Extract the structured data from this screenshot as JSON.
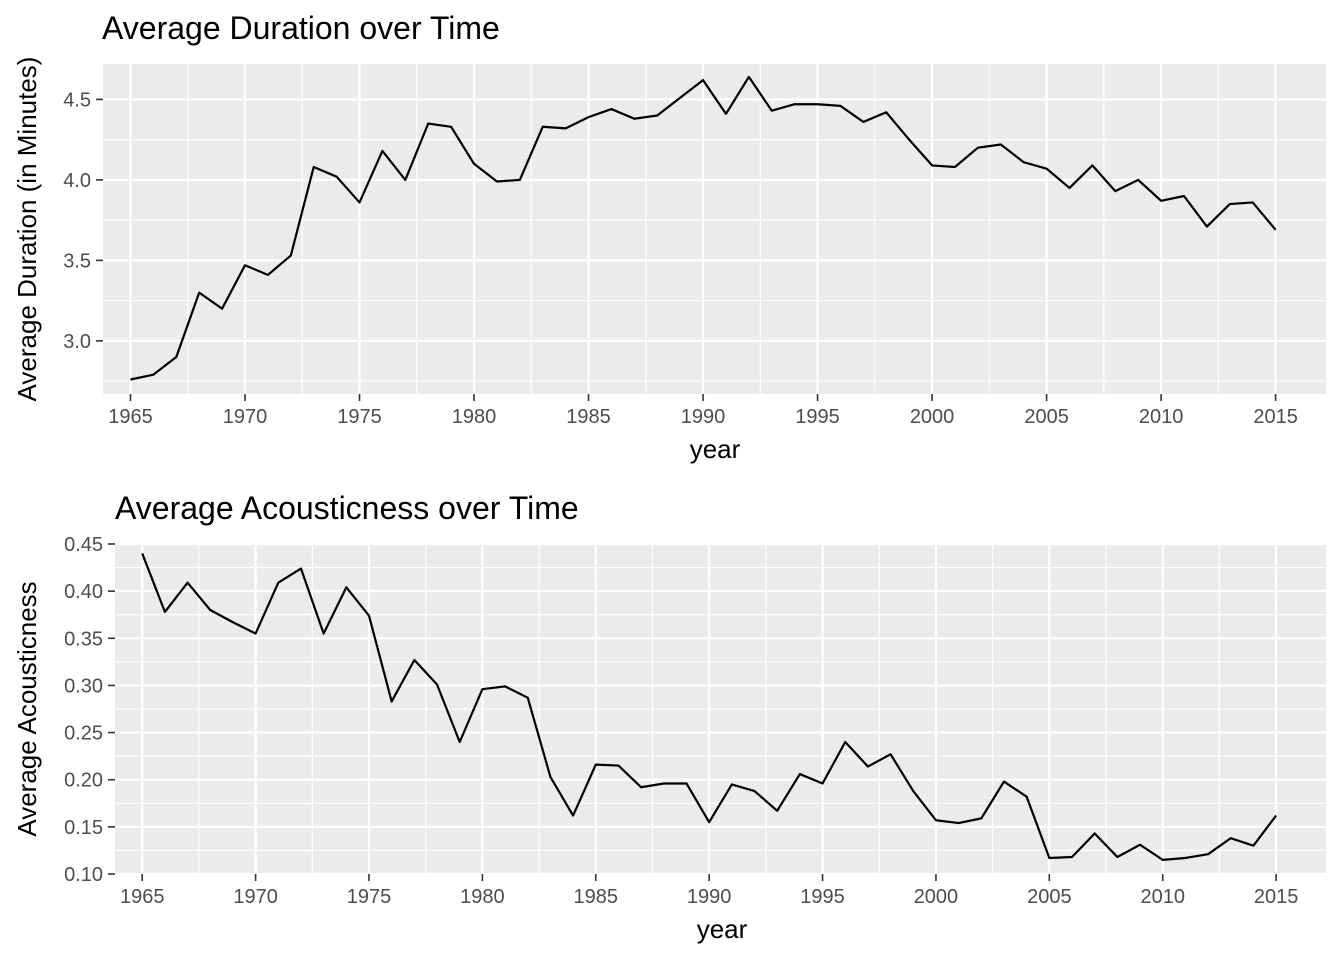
{
  "chart_data": [
    {
      "type": "line",
      "title": "Average Duration over Time",
      "xlabel": "year",
      "ylabel": "Average Duration (in Minutes)",
      "xlim": [
        1963.8,
        2017.2
      ],
      "ylim": [
        2.67,
        4.72
      ],
      "x_ticks": [
        1965,
        1970,
        1975,
        1980,
        1985,
        1990,
        1995,
        2000,
        2005,
        2010,
        2015
      ],
      "y_ticks": [
        3.0,
        3.5,
        4.0,
        4.5
      ],
      "y_tick_labels": [
        "3.0",
        "3.5",
        "4.0",
        "4.5"
      ],
      "grid": true,
      "x": [
        1965,
        1966,
        1967,
        1968,
        1969,
        1970,
        1971,
        1972,
        1973,
        1974,
        1975,
        1976,
        1977,
        1978,
        1979,
        1980,
        1981,
        1982,
        1983,
        1984,
        1985,
        1986,
        1987,
        1988,
        1989,
        1990,
        1991,
        1992,
        1993,
        1994,
        1995,
        1996,
        1997,
        1998,
        1999,
        2000,
        2001,
        2002,
        2003,
        2004,
        2005,
        2006,
        2007,
        2008,
        2009,
        2010,
        2011,
        2012,
        2013,
        2014,
        2015
      ],
      "values": [
        2.76,
        2.79,
        2.9,
        3.3,
        3.2,
        3.47,
        3.41,
        3.53,
        4.08,
        4.02,
        3.86,
        4.18,
        4.0,
        4.35,
        4.33,
        4.1,
        3.99,
        4.0,
        4.33,
        4.32,
        4.39,
        4.44,
        4.38,
        4.4,
        4.51,
        4.62,
        4.41,
        4.64,
        4.43,
        4.47,
        4.47,
        4.46,
        4.36,
        4.42,
        4.25,
        4.09,
        4.08,
        4.2,
        4.22,
        4.11,
        4.07,
        3.95,
        4.09,
        3.93,
        4.0,
        3.87,
        3.9,
        3.71,
        3.85,
        3.86,
        3.69
      ]
    },
    {
      "type": "line",
      "title": "Average Acousticness over Time",
      "xlabel": "year",
      "ylabel": "Average Acousticness",
      "xlim": [
        1963.8,
        2017.2
      ],
      "ylim": [
        0.1,
        0.45
      ],
      "x_ticks": [
        1965,
        1970,
        1975,
        1980,
        1985,
        1990,
        1995,
        2000,
        2005,
        2010,
        2015
      ],
      "y_ticks": [
        0.1,
        0.15,
        0.2,
        0.25,
        0.3,
        0.35,
        0.4,
        0.45
      ],
      "y_tick_labels": [
        "0.10",
        "0.15",
        "0.20",
        "0.25",
        "0.30",
        "0.35",
        "0.40",
        "0.45"
      ],
      "grid": true,
      "x": [
        1965,
        1966,
        1967,
        1968,
        1969,
        1970,
        1971,
        1972,
        1973,
        1974,
        1975,
        1976,
        1977,
        1978,
        1979,
        1980,
        1981,
        1982,
        1983,
        1984,
        1985,
        1986,
        1987,
        1988,
        1989,
        1990,
        1991,
        1992,
        1993,
        1994,
        1995,
        1996,
        1997,
        1998,
        1999,
        2000,
        2001,
        2002,
        2003,
        2004,
        2005,
        2006,
        2007,
        2008,
        2009,
        2010,
        2011,
        2012,
        2013,
        2014,
        2015
      ],
      "values": [
        0.44,
        0.378,
        0.409,
        0.38,
        0.367,
        0.355,
        0.409,
        0.424,
        0.355,
        0.404,
        0.374,
        0.283,
        0.327,
        0.301,
        0.24,
        0.296,
        0.299,
        0.287,
        0.203,
        0.162,
        0.216,
        0.215,
        0.192,
        0.196,
        0.196,
        0.155,
        0.195,
        0.188,
        0.167,
        0.206,
        0.196,
        0.24,
        0.214,
        0.227,
        0.188,
        0.157,
        0.154,
        0.159,
        0.198,
        0.182,
        0.117,
        0.118,
        0.143,
        0.118,
        0.131,
        0.115,
        0.117,
        0.121,
        0.138,
        0.13,
        0.162
      ]
    }
  ]
}
